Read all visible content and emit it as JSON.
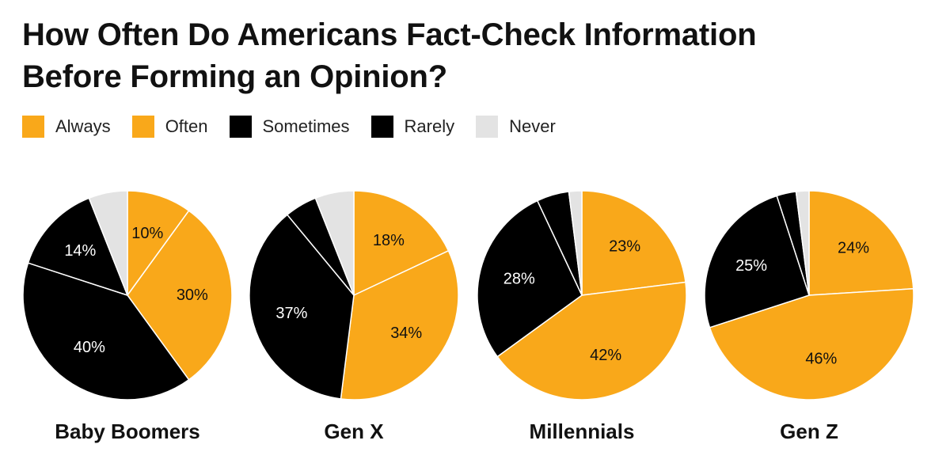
{
  "title_lines": [
    "How Often Do Americans Fact-Check Information",
    "Before Forming an Opinion?"
  ],
  "colors": {
    "Always": "#F9A81A",
    "Often": "#F9A81A",
    "Sometimes": "#000000",
    "Rarely": "#000000",
    "Never": "#E3E3E3",
    "separator": "#ffffff"
  },
  "legend": [
    "Always",
    "Often",
    "Sometimes",
    "Rarely",
    "Never"
  ],
  "chart_data": [
    {
      "type": "pie",
      "title": "Baby Boomers",
      "categories": [
        "Always",
        "Often",
        "Sometimes",
        "Rarely",
        "Never"
      ],
      "values": [
        10,
        30,
        40,
        14,
        6
      ],
      "labels": [
        "10%",
        "30%",
        "40%",
        "14%",
        ""
      ]
    },
    {
      "type": "pie",
      "title": "Gen X",
      "categories": [
        "Always",
        "Often",
        "Sometimes",
        "Rarely",
        "Never"
      ],
      "values": [
        18,
        34,
        37,
        5,
        6
      ],
      "labels": [
        "18%",
        "34%",
        "37%",
        "",
        ""
      ]
    },
    {
      "type": "pie",
      "title": "Millennials",
      "categories": [
        "Always",
        "Often",
        "Sometimes",
        "Rarely",
        "Never"
      ],
      "values": [
        23,
        42,
        28,
        5,
        2
      ],
      "labels": [
        "23%",
        "42%",
        "28%",
        "",
        ""
      ]
    },
    {
      "type": "pie",
      "title": "Gen Z",
      "categories": [
        "Always",
        "Often",
        "Sometimes",
        "Rarely",
        "Never"
      ],
      "values": [
        24,
        46,
        25,
        3,
        2
      ],
      "labels": [
        "24%",
        "46%",
        "25%",
        "",
        ""
      ]
    }
  ]
}
